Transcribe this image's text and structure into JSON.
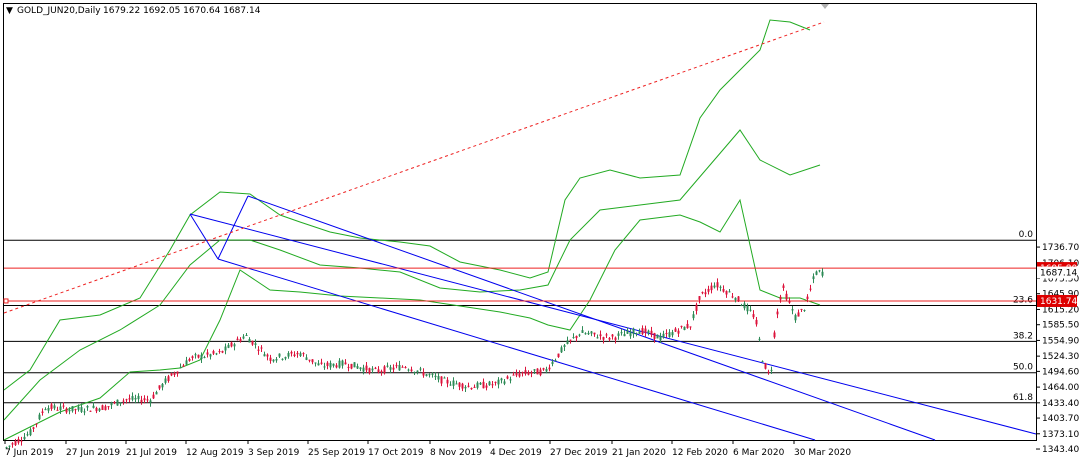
{
  "title": {
    "symbol": "GOLD_JUN20,Daily",
    "ohlc": "1679.22 1692.05 1670.64 1687.14"
  },
  "colors": {
    "bull": "#2e8b57",
    "bear": "#dc143c",
    "band": "#22aa22",
    "channel": "#0000ee",
    "fib": "#000000",
    "trend": "#ee2222",
    "hline": "#ee2222",
    "badge_red": "#dd0000",
    "badge_white": "#ffffff"
  },
  "chart_data": {
    "type": "candlestick",
    "ylim": [
      1338.0,
      1760.0
    ],
    "y_ticks": [
      "1736.70",
      "1706.10",
      "1675.50",
      "1645.90",
      "1615.20",
      "1585.50",
      "1554.90",
      "1524.30",
      "1494.60",
      "1464.00",
      "1433.40",
      "1403.70",
      "1373.10",
      "1343.40"
    ],
    "x_labels": [
      "7 Jun 2019",
      "27 Jun 2019",
      "21 Jul 2019",
      "12 Aug 2019",
      "3 Sep 2019",
      "25 Sep 2019",
      "17 Oct 2019",
      "8 Nov 2019",
      "4 Dec 2019",
      "27 Dec 2019",
      "21 Jan 2020",
      "12 Feb 2020",
      "6 Mar 2020",
      "30 Mar 2020"
    ],
    "fib_levels": [
      {
        "label": "0.0",
        "price": 1750.0
      },
      {
        "label": "23.6",
        "price": 1623.0
      },
      {
        "label": "38.2",
        "price": 1553.0
      },
      {
        "label": "50.0",
        "price": 1492.0
      },
      {
        "label": "61.8",
        "price": 1433.4
      }
    ],
    "horizontal_lines": [
      {
        "label": "1695.80",
        "price": 1695.8
      },
      {
        "label": "1631.74",
        "price": 1631.74
      }
    ],
    "current_price": {
      "label": "1687.14",
      "price": 1687.14
    }
  }
}
